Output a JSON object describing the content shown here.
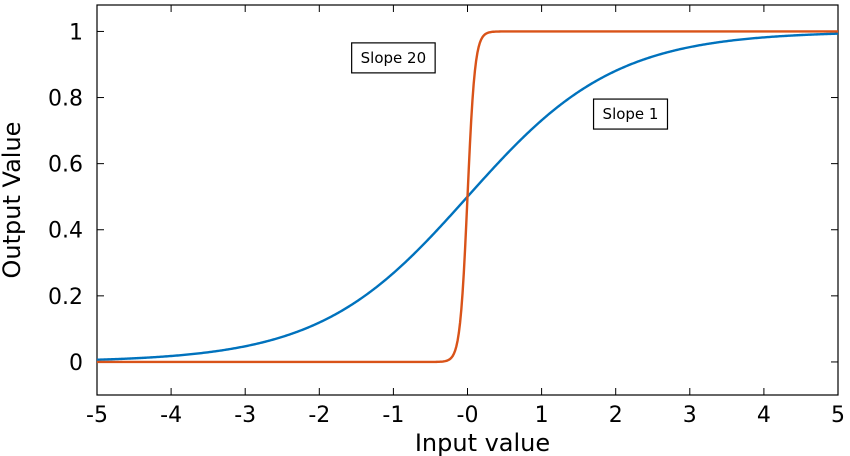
{
  "chart_data": {
    "type": "line",
    "title": "",
    "xlabel": "Input value",
    "ylabel": "Output Value",
    "xlim": [
      -5,
      5
    ],
    "ylim": [
      -0.1,
      1.08
    ],
    "x_ticks": [
      "-5",
      "-4",
      "-3",
      "-2",
      "-1",
      "-0",
      "1",
      "2",
      "3",
      "4",
      "5"
    ],
    "y_ticks": [
      "0",
      "0.2",
      "0.4",
      "0.6",
      "0.8",
      "1"
    ],
    "grid": false,
    "series": [
      {
        "slope": 1,
        "color": "#0072BD"
      },
      {
        "slope": 20,
        "color": "#D95319"
      }
    ],
    "annotations": [
      {
        "text": "Slope 20",
        "x": -1.0,
        "y": 0.92
      },
      {
        "text": "Slope 1",
        "x": 2.2,
        "y": 0.75
      }
    ]
  }
}
